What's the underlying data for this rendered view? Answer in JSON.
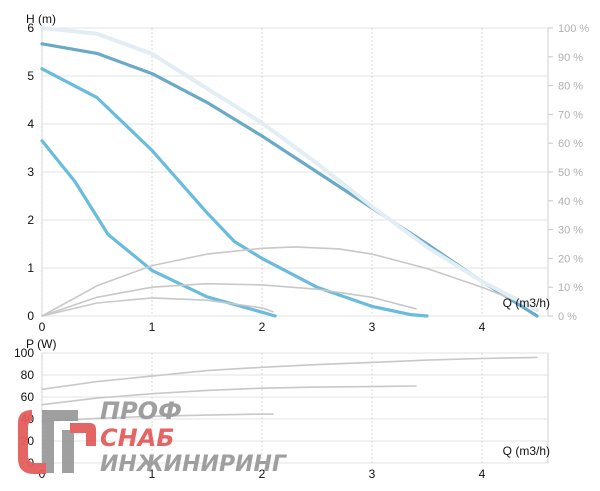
{
  "chart_data": [
    {
      "type": "line",
      "name": "head",
      "ylabel": "H (m)",
      "xlabel": "Q (m3/h)",
      "xlim": [
        0,
        4.6
      ],
      "ylim": [
        0,
        6
      ],
      "x_ticks": [
        "0",
        "1",
        "2",
        "3",
        "4"
      ],
      "y_ticks": [
        "0",
        "1",
        "2",
        "3",
        "4",
        "5",
        "6"
      ],
      "y2_ticks": [
        "0 %",
        "10 %",
        "20 %",
        "30 %",
        "40 %",
        "50 %",
        "60 %",
        "70 %",
        "80 %",
        "90 %",
        "100 %"
      ],
      "y2lim": [
        0,
        100
      ],
      "grid": true,
      "series": [
        {
          "color": "#6aaac6",
          "points": [
            [
              0,
              5.67
            ],
            [
              0.5,
              5.47
            ],
            [
              1,
              5.05
            ],
            [
              1.5,
              4.45
            ],
            [
              2,
              3.75
            ],
            [
              2.5,
              3.0
            ],
            [
              3,
              2.25
            ],
            [
              3.5,
              1.5
            ],
            [
              4,
              0.72
            ],
            [
              4.5,
              0.0
            ]
          ]
        },
        {
          "color": "#69bcdc",
          "points": [
            [
              0,
              5.15
            ],
            [
              0.5,
              4.55
            ],
            [
              1,
              3.45
            ],
            [
              1.5,
              2.15
            ],
            [
              1.75,
              1.55
            ],
            [
              2,
              1.2
            ],
            [
              2.5,
              0.6
            ],
            [
              3,
              0.2
            ],
            [
              3.35,
              0.03
            ],
            [
              3.5,
              0.0
            ]
          ]
        },
        {
          "color": "#69bcdc",
          "points": [
            [
              0,
              3.65
            ],
            [
              0.3,
              2.8
            ],
            [
              0.6,
              1.7
            ],
            [
              1,
              0.95
            ],
            [
              1.5,
              0.4
            ],
            [
              2,
              0.08
            ],
            [
              2.12,
              0.0
            ]
          ]
        },
        {
          "color": "#c8c8c8",
          "axis": "y2",
          "points": [
            [
              0,
              0
            ],
            [
              0.5,
              10.5
            ],
            [
              1,
              17.5
            ],
            [
              1.5,
              21.5
            ],
            [
              2,
              23.5
            ],
            [
              2.3,
              24
            ],
            [
              2.7,
              23.3
            ],
            [
              3,
              21.5
            ],
            [
              3.5,
              16.5
            ],
            [
              4,
              10
            ],
            [
              4.3,
              5.5
            ]
          ]
        },
        {
          "color": "#c8c8c8",
          "axis": "y2",
          "points": [
            [
              0,
              0
            ],
            [
              0.5,
              6.5
            ],
            [
              1,
              10
            ],
            [
              1.5,
              11.2
            ],
            [
              2,
              10.8
            ],
            [
              2.5,
              9.3
            ],
            [
              3,
              6.5
            ],
            [
              3.4,
              2.5
            ]
          ]
        },
        {
          "color": "#c8c8c8",
          "axis": "y2",
          "points": [
            [
              0,
              0
            ],
            [
              0.5,
              4.5
            ],
            [
              1,
              6.3
            ],
            [
              1.5,
              5.5
            ],
            [
              2,
              2.8
            ],
            [
              2.1,
              1.5
            ]
          ]
        },
        {
          "color": "#e2edf4",
          "axis": "y2",
          "points": [
            [
              0,
              100
            ],
            [
              0.5,
              98
            ],
            [
              1,
              91
            ],
            [
              1.5,
              79
            ],
            [
              2,
              67
            ],
            [
              2.5,
              53
            ],
            [
              3,
              38
            ],
            [
              3.5,
              24
            ],
            [
              4,
              12
            ],
            [
              4.5,
              2
            ]
          ]
        }
      ]
    },
    {
      "type": "line",
      "name": "power",
      "ylabel": "P (W)",
      "xlabel": "Q (m3/h)",
      "xlim": [
        0,
        4.6
      ],
      "ylim": [
        0,
        100
      ],
      "x_ticks": [
        "0",
        "1",
        "2",
        "3",
        "4"
      ],
      "y_ticks": [
        "0",
        "20",
        "40",
        "60",
        "80",
        "100"
      ],
      "grid": true,
      "series": [
        {
          "color": "#c8c8c8",
          "points": [
            [
              0,
              67
            ],
            [
              0.5,
              74
            ],
            [
              1,
              79
            ],
            [
              1.5,
              84
            ],
            [
              2,
              87
            ],
            [
              2.5,
              89.5
            ],
            [
              3,
              91.5
            ],
            [
              3.5,
              93.5
            ],
            [
              4,
              95
            ],
            [
              4.5,
              96
            ]
          ]
        },
        {
          "color": "#c8c8c8",
          "points": [
            [
              0,
              53
            ],
            [
              0.5,
              59
            ],
            [
              1,
              63
            ],
            [
              1.5,
              66
            ],
            [
              2,
              68
            ],
            [
              2.5,
              69
            ],
            [
              3,
              69.5
            ],
            [
              3.4,
              70
            ]
          ]
        },
        {
          "color": "#c8c8c8",
          "points": [
            [
              0,
              38
            ],
            [
              0.5,
              40.5
            ],
            [
              1,
              42.5
            ],
            [
              1.5,
              43.5
            ],
            [
              2,
              44.5
            ],
            [
              2.1,
              44.5
            ]
          ]
        }
      ]
    }
  ],
  "watermark": {
    "line1": "ПРОФ",
    "line2": "СНАБ",
    "line3": "ИНЖИНИРИНГ",
    "colors": {
      "gray": "#9a9a9a",
      "red": "#e45c5c"
    }
  }
}
